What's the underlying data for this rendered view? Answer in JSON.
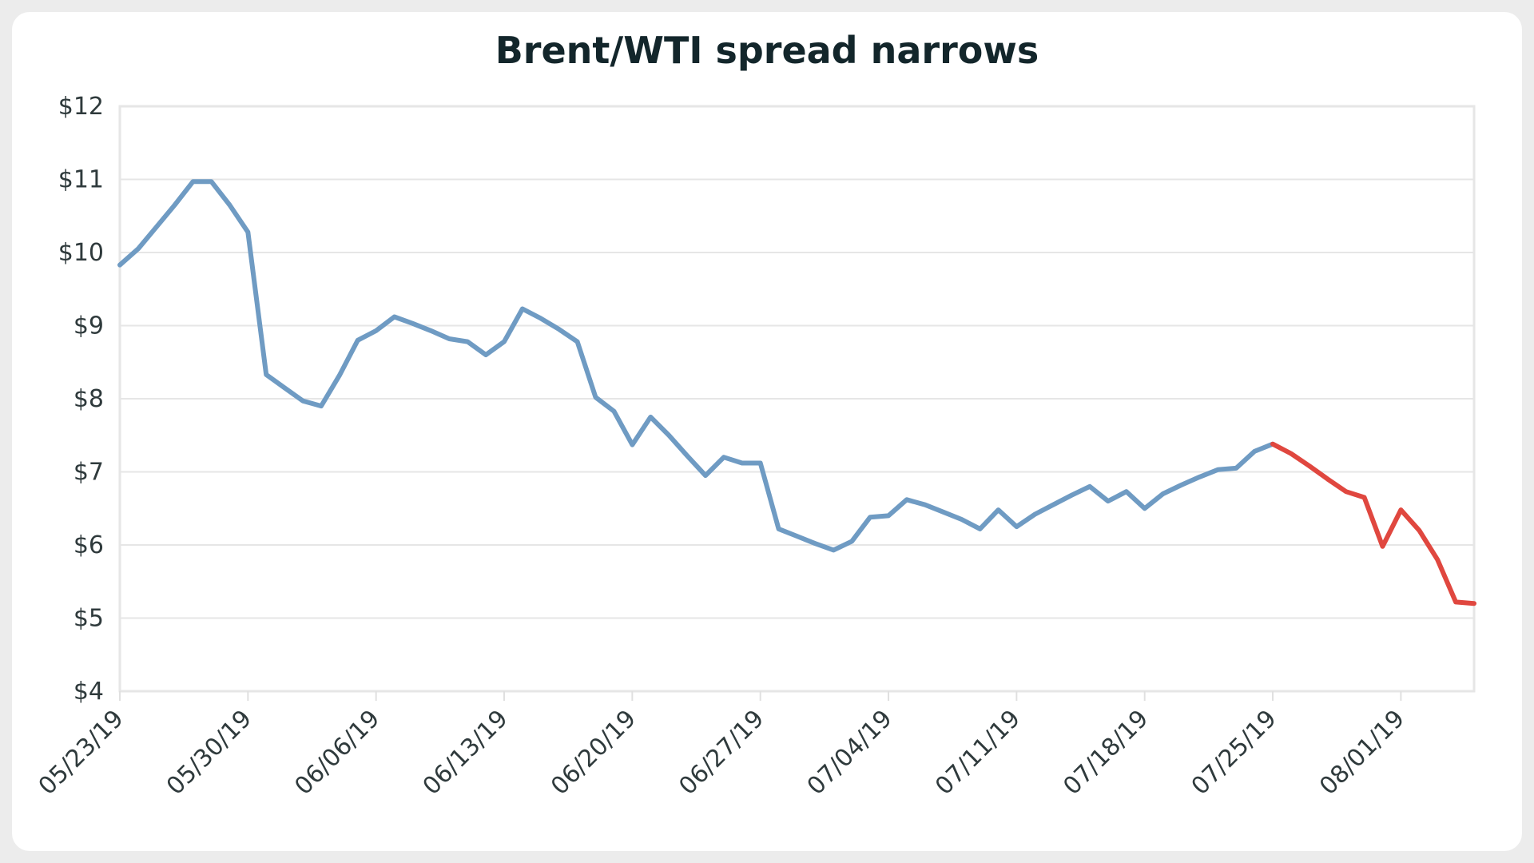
{
  "chart_data": {
    "type": "line",
    "title": "Brent/WTI spread narrows",
    "xlabel": "",
    "ylabel": "",
    "ylim": [
      4,
      12
    ],
    "yticks": [
      "$4",
      "$5",
      "$6",
      "$7",
      "$8",
      "$9",
      "$10",
      "$11",
      "$12"
    ],
    "xlim": [
      "2019-05-23",
      "2019-08-05"
    ],
    "xticks": [
      "05/23/19",
      "05/30/19",
      "06/06/19",
      "06/13/19",
      "06/20/19",
      "06/27/19",
      "07/04/19",
      "07/11/19",
      "07/18/19",
      "07/25/19",
      "08/01/19"
    ],
    "grid": true,
    "colors": {
      "history": "#6f9bc3",
      "recent": "#e0473f"
    },
    "series": [
      {
        "segment": "history",
        "x": [
          "2019-05-23",
          "2019-05-24",
          "2019-05-25",
          "2019-05-26",
          "2019-05-27",
          "2019-05-28",
          "2019-05-29",
          "2019-05-30",
          "2019-05-31",
          "2019-06-01",
          "2019-06-02",
          "2019-06-03",
          "2019-06-04",
          "2019-06-05",
          "2019-06-06",
          "2019-06-07",
          "2019-06-08",
          "2019-06-09",
          "2019-06-10",
          "2019-06-11",
          "2019-06-12",
          "2019-06-13",
          "2019-06-14",
          "2019-06-15",
          "2019-06-16",
          "2019-06-17",
          "2019-06-18",
          "2019-06-19",
          "2019-06-20",
          "2019-06-21",
          "2019-06-22",
          "2019-06-23",
          "2019-06-24",
          "2019-06-25",
          "2019-06-26",
          "2019-06-27",
          "2019-06-28",
          "2019-06-29",
          "2019-06-30",
          "2019-07-01",
          "2019-07-02",
          "2019-07-03",
          "2019-07-04",
          "2019-07-05",
          "2019-07-06",
          "2019-07-07",
          "2019-07-08",
          "2019-07-09",
          "2019-07-10",
          "2019-07-11",
          "2019-07-12",
          "2019-07-13",
          "2019-07-14",
          "2019-07-15",
          "2019-07-16",
          "2019-07-17",
          "2019-07-18",
          "2019-07-19",
          "2019-07-20",
          "2019-07-21",
          "2019-07-22",
          "2019-07-23",
          "2019-07-24",
          "2019-07-25"
        ],
        "y": [
          9.83,
          10.05,
          10.35,
          10.65,
          10.97,
          10.97,
          10.65,
          10.28,
          8.33,
          8.15,
          7.97,
          7.9,
          8.32,
          8.8,
          8.93,
          9.12,
          9.03,
          8.93,
          8.82,
          8.78,
          8.6,
          8.78,
          9.23,
          9.1,
          8.95,
          8.78,
          8.02,
          7.83,
          7.37,
          7.75,
          7.5,
          7.22,
          6.95,
          7.2,
          7.12,
          7.12,
          6.22,
          6.12,
          6.02,
          5.93,
          6.05,
          6.38,
          6.4,
          6.62,
          6.55,
          6.45,
          6.35,
          6.22,
          6.48,
          6.25,
          6.42,
          6.55,
          6.68,
          6.8,
          6.6,
          6.73,
          6.5,
          6.7,
          6.82,
          6.93,
          7.03,
          7.05,
          7.28,
          7.38
        ]
      },
      {
        "segment": "recent",
        "x": [
          "2019-07-25",
          "2019-07-26",
          "2019-07-27",
          "2019-07-28",
          "2019-07-29",
          "2019-07-30",
          "2019-07-31",
          "2019-08-01",
          "2019-08-02",
          "2019-08-03",
          "2019-08-04",
          "2019-08-05"
        ],
        "y": [
          7.38,
          7.25,
          7.08,
          6.9,
          6.73,
          6.65,
          5.98,
          6.48,
          6.2,
          5.8,
          5.22,
          5.2
        ]
      }
    ]
  }
}
